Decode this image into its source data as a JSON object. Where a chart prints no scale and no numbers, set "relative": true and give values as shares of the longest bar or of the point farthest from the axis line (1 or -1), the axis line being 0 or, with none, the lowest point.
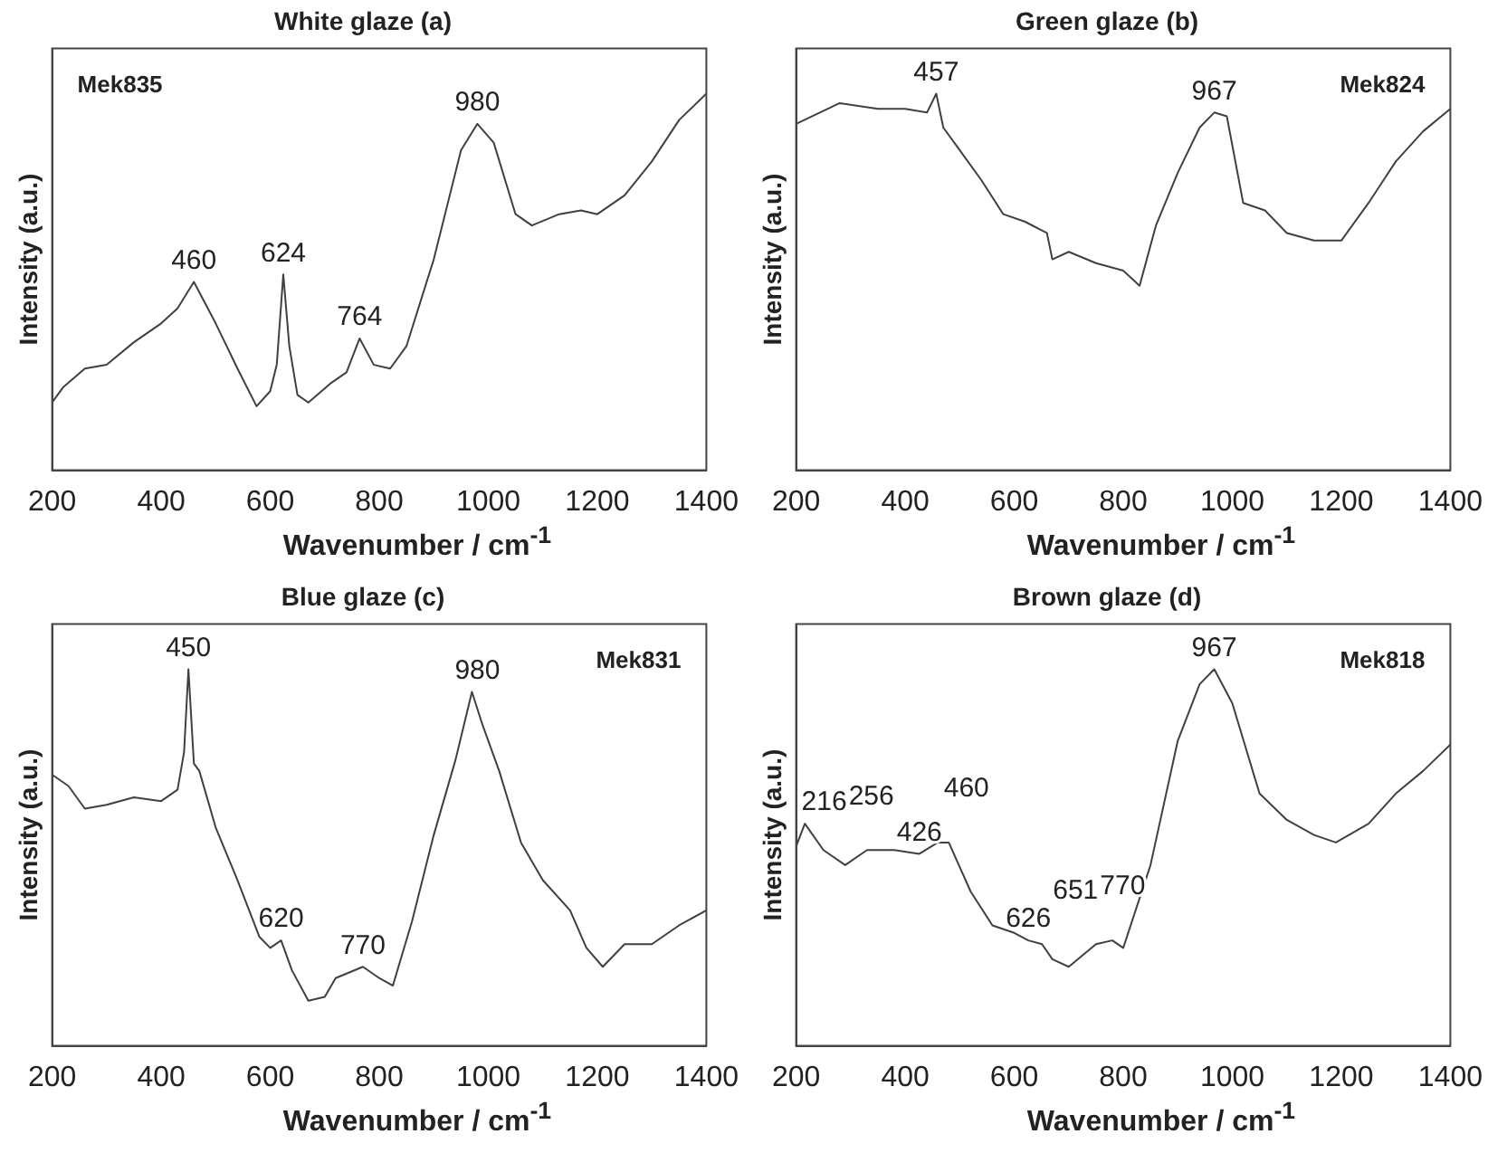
{
  "chart_data": [
    {
      "type": "line",
      "title": "White glaze (a)",
      "xlabel": "Wavenumber / cm$^{-1}$",
      "ylabel": "Intensity (a.u.)",
      "relative": true,
      "grid": false,
      "legend": false,
      "marker": "none",
      "xlim": [
        200,
        1400
      ],
      "xticks": [
        200,
        400,
        600,
        800,
        1000,
        1200,
        1400
      ],
      "series": [
        {
          "color": "#404040",
          "x": [
            200,
            220,
            260,
            300,
            350,
            400,
            430,
            460,
            500,
            540,
            575,
            600,
            612,
            624,
            635,
            650,
            670,
            710,
            740,
            764,
            790,
            820,
            850,
            900,
            950,
            980,
            1010,
            1050,
            1080,
            1130,
            1170,
            1200,
            1250,
            1300,
            1350,
            1400
          ],
          "values": [
            0.18,
            0.22,
            0.27,
            0.28,
            0.34,
            0.39,
            0.43,
            0.5,
            0.39,
            0.27,
            0.17,
            0.21,
            0.28,
            0.52,
            0.33,
            0.2,
            0.18,
            0.23,
            0.26,
            0.35,
            0.28,
            0.27,
            0.33,
            0.56,
            0.85,
            0.92,
            0.87,
            0.68,
            0.65,
            0.68,
            0.69,
            0.68,
            0.73,
            0.82,
            0.93,
            1
          ]
        }
      ],
      "annotations": [
        "Mek835",
        {
          "text": "460",
          "x": 460,
          "y": 0.5
        },
        {
          "text": "624",
          "x": 624,
          "y": 0.52
        },
        {
          "text": "764",
          "x": 764,
          "y": 0.35
        },
        {
          "text": "980",
          "x": 980,
          "y": 0.92
        }
      ]
    },
    {
      "type": "line",
      "title": "Green glaze (b)",
      "xlabel": "Wavenumber / cm$^{-1}$",
      "ylabel": "Intensity (a.u.)",
      "relative": true,
      "grid": false,
      "legend": false,
      "marker": "none",
      "xlim": [
        200,
        1400
      ],
      "xticks": [
        200,
        400,
        600,
        800,
        1000,
        1200,
        1400
      ],
      "series": [
        {
          "color": "#404040",
          "x": [
            200,
            280,
            350,
            400,
            440,
            457,
            470,
            500,
            540,
            580,
            620,
            660,
            670,
            700,
            750,
            800,
            830,
            860,
            900,
            940,
            967,
            990,
            1020,
            1060,
            1100,
            1150,
            1200,
            1250,
            1300,
            1350,
            1400
          ],
          "values": [
            0.92,
            0.975,
            0.96,
            0.96,
            0.95,
            1,
            0.91,
            0.85,
            0.77,
            0.68,
            0.66,
            0.63,
            0.56,
            0.58,
            0.55,
            0.53,
            0.49,
            0.65,
            0.79,
            0.91,
            0.95,
            0.94,
            0.71,
            0.69,
            0.63,
            0.61,
            0.61,
            0.71,
            0.82,
            0.9,
            0.96
          ]
        }
      ],
      "annotations": [
        "Mek824",
        {
          "text": "457",
          "x": 457,
          "y": 1
        },
        {
          "text": "967",
          "x": 967,
          "y": 0.95
        }
      ]
    },
    {
      "type": "line",
      "title": "Blue glaze (c)",
      "xlabel": "Wavenumber / cm$^{-1}$",
      "ylabel": "Intensity (a.u.)",
      "relative": true,
      "grid": false,
      "legend": false,
      "marker": "none",
      "xlim": [
        200,
        1400
      ],
      "xticks": [
        200,
        400,
        600,
        800,
        1000,
        1200,
        1400
      ],
      "series": [
        {
          "color": "#404040",
          "x": [
            200,
            230,
            260,
            300,
            350,
            400,
            430,
            442,
            450,
            460,
            470,
            500,
            540,
            580,
            600,
            620,
            640,
            670,
            700,
            720,
            770,
            800,
            825,
            860,
            900,
            940,
            970,
            990,
            1020,
            1060,
            1100,
            1150,
            1180,
            1210,
            1250,
            1300,
            1350,
            1400
          ],
          "values": [
            0.72,
            0.69,
            0.63,
            0.64,
            0.66,
            0.65,
            0.68,
            0.78,
            1,
            0.75,
            0.73,
            0.58,
            0.44,
            0.29,
            0.26,
            0.28,
            0.2,
            0.12,
            0.13,
            0.18,
            0.21,
            0.18,
            0.16,
            0.33,
            0.56,
            0.76,
            0.94,
            0.85,
            0.73,
            0.54,
            0.44,
            0.36,
            0.26,
            0.21,
            0.27,
            0.27,
            0.32,
            0.36
          ]
        }
      ],
      "annotations": [
        "Mek831",
        {
          "text": "450",
          "x": 450,
          "y": 1
        },
        {
          "text": "620",
          "x": 620,
          "y": 0.28
        },
        {
          "text": "770",
          "x": 770,
          "y": 0.21
        },
        {
          "text": "980",
          "x": 980,
          "y": 0.94
        }
      ]
    },
    {
      "type": "line",
      "title": "Brown glaze (d)",
      "xlabel": "Wavenumber / cm$^{-1}$",
      "ylabel": "Intensity (a.u.)",
      "relative": true,
      "grid": false,
      "legend": false,
      "marker": "none",
      "xlim": [
        200,
        1400
      ],
      "xticks": [
        200,
        400,
        600,
        800,
        1000,
        1200,
        1400
      ],
      "series": [
        {
          "color": "#404040",
          "x": [
            200,
            216,
            250,
            290,
            330,
            380,
            426,
            460,
            480,
            520,
            560,
            600,
            626,
            651,
            670,
            700,
            750,
            780,
            800,
            850,
            900,
            940,
            967,
            1000,
            1050,
            1100,
            1150,
            1190,
            1250,
            1300,
            1350,
            1400
          ],
          "values": [
            0.53,
            0.59,
            0.52,
            0.48,
            0.52,
            0.52,
            0.51,
            0.54,
            0.54,
            0.41,
            0.32,
            0.3,
            0.28,
            0.27,
            0.23,
            0.21,
            0.27,
            0.28,
            0.26,
            0.48,
            0.81,
            0.96,
            1,
            0.91,
            0.67,
            0.6,
            0.56,
            0.54,
            0.59,
            0.67,
            0.73,
            0.8
          ]
        }
      ],
      "annotations": [
        "Mek818",
        {
          "text": "216",
          "x": 216,
          "y": 0.59
        },
        {
          "text": "256",
          "x": 256,
          "y": 0.52
        },
        {
          "text": "426",
          "x": 426,
          "y": 0.51
        },
        {
          "text": "460",
          "x": 460,
          "y": 0.54
        },
        {
          "text": "626",
          "x": 626,
          "y": 0.28
        },
        {
          "text": "651",
          "x": 651,
          "y": 0.27
        },
        {
          "text": "770",
          "x": 770,
          "y": 0.28
        },
        {
          "text": "967",
          "x": 967,
          "y": 1
        }
      ]
    }
  ]
}
